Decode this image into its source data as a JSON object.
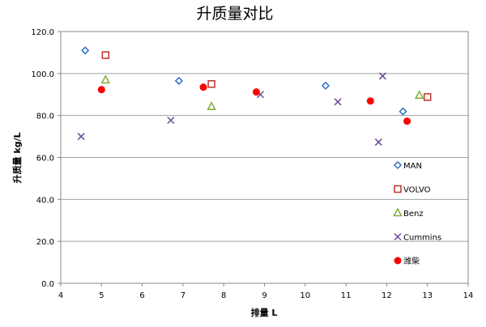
{
  "chart_data": {
    "type": "scatter",
    "title": "升质量对比",
    "xlabel": "排量 L",
    "ylabel": "升质量 kg/L",
    "xlim": [
      4,
      14
    ],
    "ylim": [
      0,
      120
    ],
    "xticks": [
      "4",
      "5",
      "6",
      "7",
      "8",
      "9",
      "10",
      "11",
      "12",
      "13",
      "14"
    ],
    "yticks": [
      "0.0",
      "20.0",
      "40.0",
      "60.0",
      "80.0",
      "100.0",
      "120.0"
    ],
    "grid": "horizontal",
    "legend_position": "inside-right",
    "series": [
      {
        "name": "MAN",
        "marker": "diamond-open",
        "color": "#2e6fc4",
        "points": [
          [
            4.6,
            111
          ],
          [
            6.9,
            96.5
          ],
          [
            10.5,
            94.2
          ],
          [
            12.4,
            81.9
          ]
        ]
      },
      {
        "name": "VOLVO",
        "marker": "square-open",
        "color": "#c0302b",
        "points": [
          [
            5.1,
            108.8
          ],
          [
            7.7,
            95
          ],
          [
            13.0,
            88.8
          ]
        ]
      },
      {
        "name": "Benz",
        "marker": "triangle-open",
        "color": "#7fae3b",
        "points": [
          [
            5.1,
            96.9
          ],
          [
            7.7,
            84.2
          ],
          [
            12.8,
            89.6
          ]
        ]
      },
      {
        "name": "Cummins",
        "marker": "x",
        "color": "#6b4a9b",
        "points": [
          [
            4.5,
            70
          ],
          [
            6.7,
            77.7
          ],
          [
            8.9,
            90
          ],
          [
            10.8,
            86.5
          ],
          [
            11.9,
            98.8
          ],
          [
            11.8,
            67.3
          ]
        ]
      },
      {
        "name": "潍柴",
        "marker": "circle-filled",
        "color": "#ff0000",
        "points": [
          [
            5.0,
            92.3
          ],
          [
            7.5,
            93.5
          ],
          [
            8.8,
            91.2
          ],
          [
            11.6,
            86.9
          ],
          [
            12.5,
            77.3
          ]
        ]
      }
    ]
  }
}
